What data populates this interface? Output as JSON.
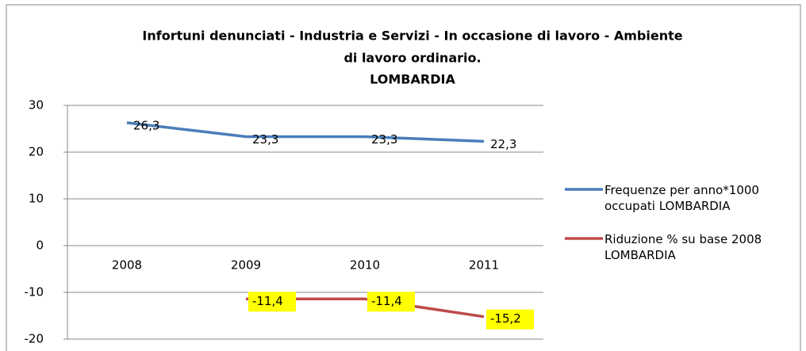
{
  "chart_data": {
    "type": "line",
    "title": [
      "Infortuni denunciati -  Industria e Servizi - In occasione di lavoro - Ambiente",
      "di lavoro ordinario.",
      "LOMBARDIA"
    ],
    "categories": [
      "2008",
      "2009",
      "2010",
      "2011"
    ],
    "series": [
      {
        "name": "Frequenze per anno*1000 occupati LOMBARDIA",
        "color": "#4a7ebb",
        "values": [
          26.3,
          23.3,
          23.3,
          22.3
        ],
        "value_labels": [
          "26,3",
          "23,3",
          "23,3",
          "22,3"
        ]
      },
      {
        "name": "Riduzione % su base 2008 LOMBARDIA",
        "color": "#be4b48",
        "values": [
          null,
          -11.4,
          -11.4,
          -15.2
        ],
        "value_labels": [
          null,
          "-11,4",
          "-11,4",
          "-15,2"
        ]
      }
    ],
    "ylim": [
      -20,
      30
    ],
    "yticks": [
      -20,
      -10,
      0,
      10,
      20,
      30
    ],
    "grid": true,
    "legend": "right"
  }
}
